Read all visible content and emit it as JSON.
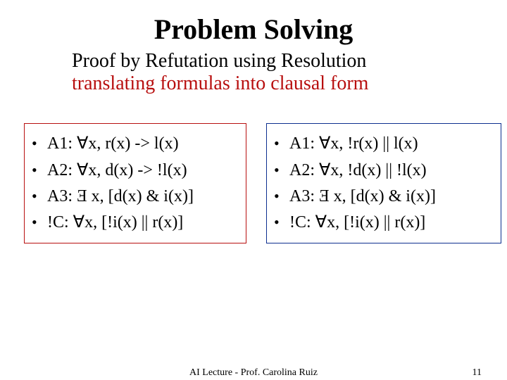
{
  "title": "Problem Solving",
  "subtitle_line1": "Proof by Refutation using Resolution",
  "subtitle_line2": "translating formulas into clausal form",
  "subtitle_line2_color": "#b80f0f",
  "boxes": {
    "left": {
      "border_color": "#b80f0f",
      "items": [
        "A1: ∀x,   r(x) -> l(x)",
        "A2: ∀x, d(x) -> !l(x)",
        "A3: Ǝ x, [d(x) & i(x)]",
        "!C:  ∀x, [!i(x) || r(x)]"
      ]
    },
    "right": {
      "border_color": "#0d2f8f",
      "items": [
        "A1: ∀x,  !r(x) || l(x)",
        "A2: ∀x, !d(x) || !l(x)",
        "A3: Ǝ x, [d(x) & i(x)]",
        "!C:  ∀x, [!i(x) || r(x)]"
      ]
    }
  },
  "bullet_char": "•",
  "footer": {
    "center": "AI Lecture - Prof. Carolina Ruiz",
    "page": "11"
  },
  "fonts": {
    "title_size": 40,
    "subtitle_size": 28,
    "body_size": 24,
    "footer_size": 14
  },
  "colors": {
    "background": "#ffffff",
    "text": "#000000",
    "accent_red": "#b80f0f",
    "accent_blue": "#0d2f8f"
  }
}
